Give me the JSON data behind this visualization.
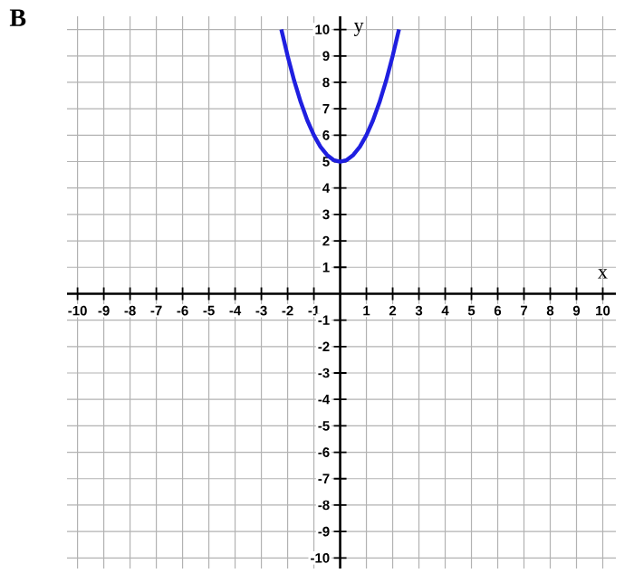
{
  "chart_data": {
    "type": "line",
    "title": "B",
    "xlabel": "x",
    "ylabel": "y",
    "x": [
      -2.24,
      -2,
      -1.75,
      -1.5,
      -1.25,
      -1,
      -0.75,
      -0.5,
      -0.25,
      0,
      0.25,
      0.5,
      0.75,
      1,
      1.25,
      1.5,
      1.75,
      2,
      2.24
    ],
    "series": [
      {
        "color": "#1f1fe0",
        "values": [
          10.0,
          9.0,
          8.06,
          7.25,
          6.56,
          6.0,
          5.56,
          5.25,
          5.06,
          5.0,
          5.06,
          5.25,
          5.56,
          6.0,
          6.56,
          7.25,
          8.06,
          9.0,
          10.0
        ]
      }
    ],
    "xlim": [
      -10.4,
      10.5
    ],
    "ylim": [
      -10.4,
      10.5
    ],
    "xticks": [
      -10,
      -9,
      -8,
      -7,
      -6,
      -5,
      -4,
      -3,
      -2,
      -1,
      {
        "value": 0,
        "label": null
      },
      1,
      2,
      3,
      4,
      5,
      6,
      7,
      8,
      9,
      10
    ],
    "yticks": [
      -10,
      -9,
      -8,
      -7,
      -6,
      -5,
      -4,
      -3,
      -2,
      -1,
      {
        "value": 0,
        "label": null
      },
      1,
      2,
      3,
      4,
      5,
      6,
      7,
      8,
      9,
      10
    ],
    "grid": true,
    "marker": "none",
    "line_style": "solid"
  }
}
